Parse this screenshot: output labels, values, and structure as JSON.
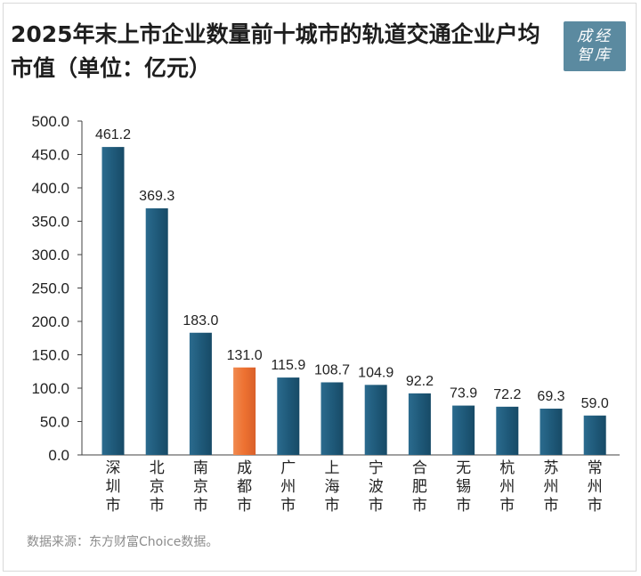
{
  "title": "2025年末上市企业数量前十城市的轨道交通企业户均市值（单位：亿元）",
  "logo_text": "成经智库",
  "source": "数据来源：东方财富Choice数据。",
  "colors": {
    "bar": "#1f5a7a",
    "highlight": "#ed7131",
    "axis": "#404040"
  },
  "chart_data": {
    "type": "bar",
    "title": "2025年末上市企业数量前十城市的轨道交通企业户均市值（单位：亿元）",
    "categories": [
      "深圳市",
      "北京市",
      "南京市",
      "成都市",
      "广州市",
      "上海市",
      "宁波市",
      "合肥市",
      "无锡市",
      "杭州市",
      "苏州市",
      "常州市"
    ],
    "values": [
      461.2,
      369.3,
      183.0,
      131.0,
      115.9,
      108.7,
      104.9,
      92.2,
      73.9,
      72.2,
      69.3,
      59.0
    ],
    "value_labels": [
      "461.2",
      "369.3",
      "183.0",
      "131.0",
      "115.9",
      "108.7",
      "104.9",
      "92.2",
      "73.9",
      "72.2",
      "69.3",
      "59.0"
    ],
    "highlight_index": 3,
    "ylim": [
      0,
      500
    ],
    "yticks": [
      "0.0",
      "50.0",
      "100.0",
      "150.0",
      "200.0",
      "250.0",
      "300.0",
      "350.0",
      "400.0",
      "450.0",
      "500.0"
    ],
    "grid": false,
    "legend": "none"
  }
}
